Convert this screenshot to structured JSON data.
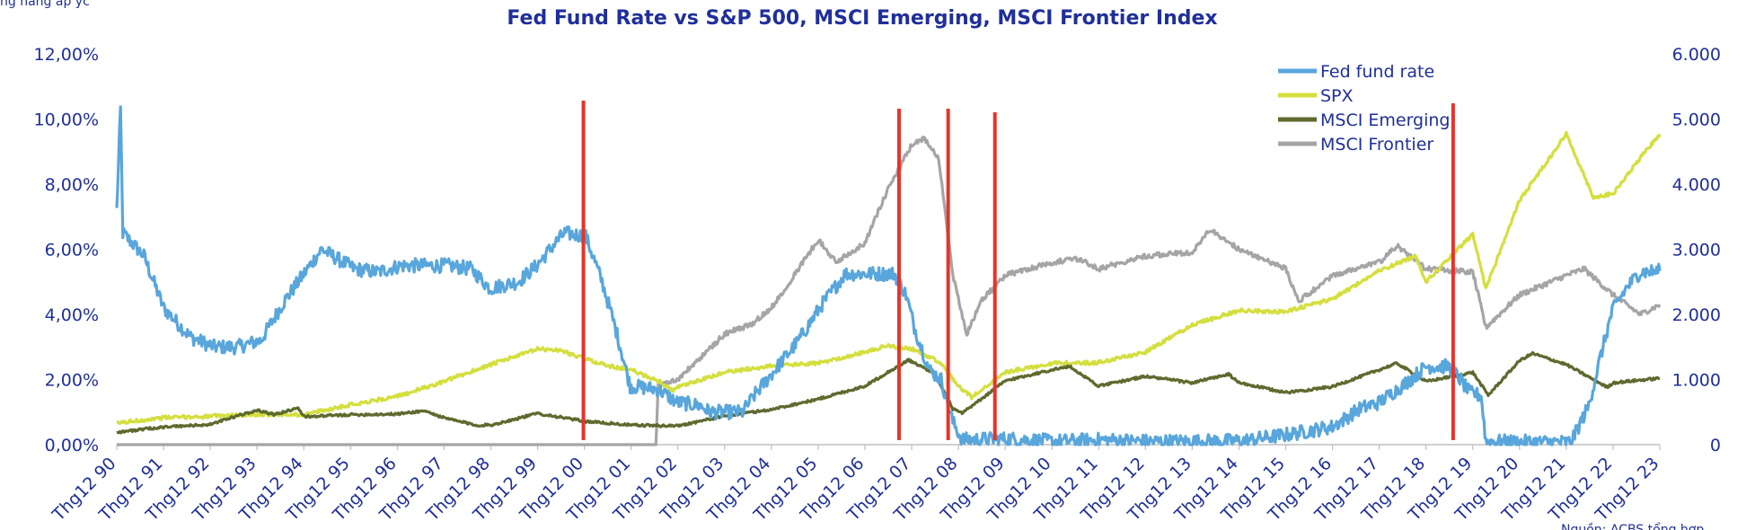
{
  "chart_data": {
    "type": "line",
    "title": "Fed Fund Rate vs S&P 500, MSCI Emerging, MSCI Frontier Index",
    "header_fragment": "ng hàng ap yc",
    "footer_fragment": "Nguồn: ACBS tổng hợp",
    "y_left": {
      "min": 0,
      "max": 12,
      "ticks": [
        "0,00%",
        "2,00%",
        "4,00%",
        "6,00%",
        "8,00%",
        "10,00%",
        "12,00%"
      ]
    },
    "y_right": {
      "min": 0,
      "max": 6000,
      "ticks": [
        "0",
        "1.000",
        "2.000",
        "3.000",
        "4.000",
        "5.000",
        "6.000"
      ]
    },
    "x_range": [
      1990.92,
      2023.92
    ],
    "x_ticks": [
      "Thg12 90",
      "Thg12 91",
      "Thg12 92",
      "Thg12 93",
      "Thg12 94",
      "Thg12 95",
      "Thg12 96",
      "Thg12 97",
      "Thg12 98",
      "Thg12 99",
      "Thg12 00",
      "Thg12 01",
      "Thg12 02",
      "Thg12 03",
      "Thg12 04",
      "Thg12 05",
      "Thg12 06",
      "Thg12 07",
      "Thg12 08",
      "Thg12 09",
      "Thg12 10",
      "Thg12 11",
      "Thg12 12",
      "Thg12 13",
      "Thg12 14",
      "Thg12 15",
      "Thg12 16",
      "Thg12 17",
      "Thg12 18",
      "Thg12 19",
      "Thg12 20",
      "Thg12 21",
      "Thg12 22",
      "Thg12 23"
    ],
    "legend": {
      "position": "top-center-right",
      "entries": [
        "Fed fund rate",
        "SPX",
        "MSCI Emerging",
        "MSCI Frontier"
      ]
    },
    "vertical_markers": [
      2000.9,
      2007.65,
      2008.7,
      2009.7,
      2019.5
    ],
    "series": [
      {
        "name": "Fed fund rate",
        "axis": "left",
        "color": "#58a6dc",
        "noise": 0.22,
        "points": [
          [
            1990.92,
            7.2
          ],
          [
            1991.0,
            10.3
          ],
          [
            1991.05,
            6.5
          ],
          [
            1991.5,
            5.8
          ],
          [
            1991.92,
            4.2
          ],
          [
            1992.5,
            3.3
          ],
          [
            1993.0,
            3.0
          ],
          [
            1993.5,
            3.0
          ],
          [
            1994.0,
            3.2
          ],
          [
            1994.5,
            4.4
          ],
          [
            1995.0,
            5.4
          ],
          [
            1995.3,
            6.0
          ],
          [
            1996.0,
            5.4
          ],
          [
            1996.5,
            5.3
          ],
          [
            1997.0,
            5.5
          ],
          [
            1997.5,
            5.5
          ],
          [
            1998.0,
            5.5
          ],
          [
            1998.5,
            5.4
          ],
          [
            1998.9,
            4.8
          ],
          [
            1999.5,
            5.0
          ],
          [
            1999.9,
            5.5
          ],
          [
            2000.3,
            6.2
          ],
          [
            2000.5,
            6.5
          ],
          [
            2000.95,
            6.4
          ],
          [
            2001.3,
            5.0
          ],
          [
            2001.6,
            3.5
          ],
          [
            2001.9,
            1.8
          ],
          [
            2002.5,
            1.7
          ],
          [
            2002.9,
            1.3
          ],
          [
            2003.4,
            1.2
          ],
          [
            2003.6,
            1.0
          ],
          [
            2004.3,
            1.0
          ],
          [
            2004.6,
            1.6
          ],
          [
            2005.0,
            2.3
          ],
          [
            2005.5,
            3.2
          ],
          [
            2006.0,
            4.3
          ],
          [
            2006.5,
            5.25
          ],
          [
            2007.0,
            5.25
          ],
          [
            2007.55,
            5.25
          ],
          [
            2007.8,
            4.6
          ],
          [
            2008.0,
            3.5
          ],
          [
            2008.3,
            2.3
          ],
          [
            2008.55,
            2.0
          ],
          [
            2008.8,
            0.7
          ],
          [
            2009.0,
            0.15
          ],
          [
            2010.0,
            0.18
          ],
          [
            2011.0,
            0.1
          ],
          [
            2012.0,
            0.15
          ],
          [
            2013.0,
            0.1
          ],
          [
            2014.0,
            0.1
          ],
          [
            2015.0,
            0.12
          ],
          [
            2015.92,
            0.3
          ],
          [
            2016.92,
            0.55
          ],
          [
            2017.5,
            1.1
          ],
          [
            2017.92,
            1.3
          ],
          [
            2018.5,
            1.9
          ],
          [
            2018.92,
            2.4
          ],
          [
            2019.4,
            2.4
          ],
          [
            2019.6,
            2.1
          ],
          [
            2019.85,
            1.6
          ],
          [
            2020.1,
            1.5
          ],
          [
            2020.2,
            0.1
          ],
          [
            2021.0,
            0.08
          ],
          [
            2022.0,
            0.08
          ],
          [
            2022.1,
            0.3
          ],
          [
            2022.4,
            1.2
          ],
          [
            2022.6,
            2.4
          ],
          [
            2022.9,
            4.1
          ],
          [
            2023.2,
            4.8
          ],
          [
            2023.5,
            5.3
          ],
          [
            2023.92,
            5.33
          ]
        ]
      },
      {
        "name": "SPX",
        "axis": "right",
        "color": "#d4df3e",
        "noise": 28,
        "points": [
          [
            1990.92,
            330
          ],
          [
            1991.92,
            415
          ],
          [
            1992.92,
            435
          ],
          [
            1993.92,
            466
          ],
          [
            1994.92,
            460
          ],
          [
            1995.92,
            615
          ],
          [
            1996.92,
            740
          ],
          [
            1997.92,
            970
          ],
          [
            1998.6,
            1150
          ],
          [
            1998.92,
            1229
          ],
          [
            1999.92,
            1469
          ],
          [
            2000.4,
            1450
          ],
          [
            2000.92,
            1320
          ],
          [
            2001.5,
            1200
          ],
          [
            2001.92,
            1148
          ],
          [
            2002.5,
            980
          ],
          [
            2002.8,
            830
          ],
          [
            2002.92,
            880
          ],
          [
            2003.92,
            1110
          ],
          [
            2004.92,
            1210
          ],
          [
            2005.92,
            1250
          ],
          [
            2006.92,
            1420
          ],
          [
            2007.4,
            1520
          ],
          [
            2007.92,
            1470
          ],
          [
            2008.5,
            1280
          ],
          [
            2008.92,
            900
          ],
          [
            2009.2,
            730
          ],
          [
            2009.92,
            1110
          ],
          [
            2010.92,
            1250
          ],
          [
            2011.92,
            1260
          ],
          [
            2012.92,
            1420
          ],
          [
            2013.92,
            1840
          ],
          [
            2014.92,
            2060
          ],
          [
            2015.92,
            2040
          ],
          [
            2016.92,
            2240
          ],
          [
            2017.92,
            2670
          ],
          [
            2018.7,
            2900
          ],
          [
            2018.92,
            2500
          ],
          [
            2019.92,
            3230
          ],
          [
            2020.2,
            2400
          ],
          [
            2020.92,
            3750
          ],
          [
            2021.92,
            4770
          ],
          [
            2022.5,
            3800
          ],
          [
            2022.92,
            3850
          ],
          [
            2023.5,
            4400
          ],
          [
            2023.92,
            4770
          ]
        ]
      },
      {
        "name": "MSCI Emerging",
        "axis": "right",
        "color": "#5e6a2e",
        "noise": 18,
        "points": [
          [
            1990.92,
            190
          ],
          [
            1991.92,
            270
          ],
          [
            1992.92,
            310
          ],
          [
            1993.4,
            420
          ],
          [
            1993.92,
            530
          ],
          [
            1994.3,
            460
          ],
          [
            1994.8,
            570
          ],
          [
            1994.92,
            430
          ],
          [
            1995.92,
            460
          ],
          [
            1996.92,
            470
          ],
          [
            1997.5,
            520
          ],
          [
            1997.92,
            410
          ],
          [
            1998.6,
            300
          ],
          [
            1998.92,
            300
          ],
          [
            1999.92,
            480
          ],
          [
            2000.92,
            360
          ],
          [
            2001.92,
            300
          ],
          [
            2002.7,
            290
          ],
          [
            2002.92,
            290
          ],
          [
            2003.92,
            440
          ],
          [
            2004.92,
            540
          ],
          [
            2005.92,
            700
          ],
          [
            2006.92,
            900
          ],
          [
            2007.5,
            1150
          ],
          [
            2007.85,
            1300
          ],
          [
            2008.4,
            1100
          ],
          [
            2008.8,
            550
          ],
          [
            2009.0,
            480
          ],
          [
            2009.5,
            750
          ],
          [
            2009.92,
            980
          ],
          [
            2010.92,
            1150
          ],
          [
            2011.3,
            1200
          ],
          [
            2011.92,
            900
          ],
          [
            2012.92,
            1050
          ],
          [
            2013.92,
            950
          ],
          [
            2014.7,
            1080
          ],
          [
            2014.92,
            950
          ],
          [
            2015.92,
            800
          ],
          [
            2016.92,
            890
          ],
          [
            2017.92,
            1150
          ],
          [
            2018.3,
            1250
          ],
          [
            2018.92,
            970
          ],
          [
            2019.92,
            1110
          ],
          [
            2020.25,
            760
          ],
          [
            2020.92,
            1290
          ],
          [
            2021.2,
            1400
          ],
          [
            2021.92,
            1230
          ],
          [
            2022.8,
            880
          ],
          [
            2022.92,
            950
          ],
          [
            2023.92,
            1020
          ]
        ]
      },
      {
        "name": "MSCI Frontier",
        "axis": "right",
        "color": "#a5a5a8",
        "noise": 40,
        "points": [
          [
            1990.92,
            0
          ],
          [
            2002.45,
            0
          ],
          [
            2002.5,
            920
          ],
          [
            2002.92,
            1000
          ],
          [
            2003.5,
            1400
          ],
          [
            2003.92,
            1700
          ],
          [
            2004.5,
            1850
          ],
          [
            2004.92,
            2100
          ],
          [
            2005.5,
            2700
          ],
          [
            2005.92,
            3150
          ],
          [
            2006.3,
            2800
          ],
          [
            2006.92,
            3100
          ],
          [
            2007.4,
            3900
          ],
          [
            2007.92,
            4600
          ],
          [
            2008.2,
            4700
          ],
          [
            2008.5,
            4400
          ],
          [
            2008.8,
            2600
          ],
          [
            2009.1,
            1700
          ],
          [
            2009.4,
            2200
          ],
          [
            2009.92,
            2600
          ],
          [
            2010.92,
            2800
          ],
          [
            2011.5,
            2850
          ],
          [
            2011.92,
            2700
          ],
          [
            2012.92,
            2900
          ],
          [
            2013.92,
            2950
          ],
          [
            2014.3,
            3300
          ],
          [
            2014.92,
            3000
          ],
          [
            2015.92,
            2700
          ],
          [
            2016.2,
            2200
          ],
          [
            2016.92,
            2600
          ],
          [
            2017.92,
            2800
          ],
          [
            2018.3,
            3050
          ],
          [
            2018.92,
            2700
          ],
          [
            2019.92,
            2650
          ],
          [
            2020.2,
            1800
          ],
          [
            2020.92,
            2300
          ],
          [
            2021.92,
            2600
          ],
          [
            2022.3,
            2700
          ],
          [
            2022.92,
            2300
          ],
          [
            2023.5,
            2000
          ],
          [
            2023.92,
            2150
          ]
        ]
      }
    ]
  }
}
